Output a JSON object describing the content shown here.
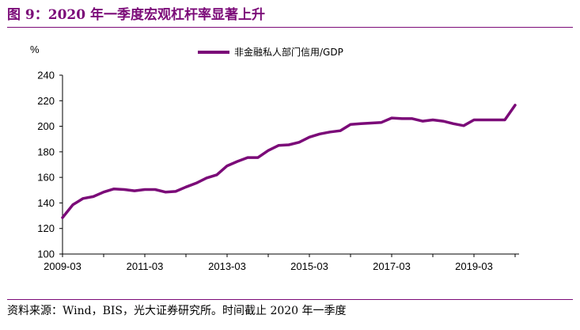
{
  "header": {
    "title": "图 9：2020 年一季度宏观杠杆率显著上升"
  },
  "footer": {
    "source": "资料来源：Wind，BIS，光大证券研究所。时间截止 2020 年一季度"
  },
  "colors": {
    "accent": "#7b0a78",
    "series": "#7b0a78"
  },
  "chart_data": {
    "type": "line",
    "unit_label": "%",
    "ylim": [
      100,
      240
    ],
    "yticks": [
      100,
      120,
      140,
      160,
      180,
      200,
      220,
      240
    ],
    "xtick_labels": [
      "2009-03",
      "2011-03",
      "2013-03",
      "2015-03",
      "2017-03",
      "2019-03"
    ],
    "grid": false,
    "legend_position": "top",
    "x": [
      "2009-03",
      "2009-06",
      "2009-09",
      "2009-12",
      "2010-03",
      "2010-06",
      "2010-09",
      "2010-12",
      "2011-03",
      "2011-06",
      "2011-09",
      "2011-12",
      "2012-03",
      "2012-06",
      "2012-09",
      "2012-12",
      "2013-03",
      "2013-06",
      "2013-09",
      "2013-12",
      "2014-03",
      "2014-06",
      "2014-09",
      "2014-12",
      "2015-03",
      "2015-06",
      "2015-09",
      "2015-12",
      "2016-03",
      "2016-06",
      "2016-09",
      "2016-12",
      "2017-03",
      "2017-06",
      "2017-09",
      "2017-12",
      "2018-03",
      "2018-06",
      "2018-09",
      "2018-12",
      "2019-03",
      "2019-06",
      "2019-09",
      "2019-12",
      "2020-03"
    ],
    "series": [
      {
        "name": "非金融私人部门信用/GDP",
        "values": [
          128.5,
          138.5,
          143.5,
          145,
          148.5,
          151,
          150.5,
          149.5,
          150.5,
          150.5,
          148.5,
          149,
          152.5,
          155.5,
          159.5,
          162,
          169,
          172.5,
          175.5,
          175.5,
          181,
          185,
          185.5,
          187.5,
          191.5,
          194,
          195.5,
          196.5,
          201.5,
          202,
          202.5,
          203,
          206.5,
          206,
          206,
          204,
          205,
          204,
          202,
          200.5,
          205,
          205,
          205,
          205,
          216.5
        ]
      }
    ]
  }
}
